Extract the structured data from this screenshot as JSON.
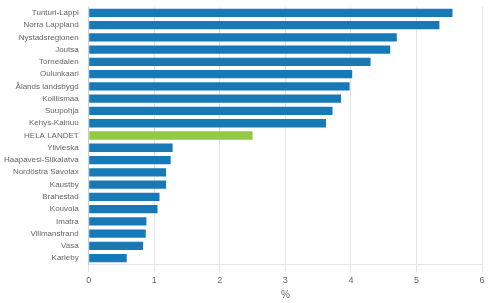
{
  "chart_data": {
    "type": "bar",
    "orientation": "horizontal",
    "categories": [
      "Tunturi-Lappi",
      "Norra Lappland",
      "Nystadsregionen",
      "Joutsa",
      "Tornedalen",
      "Oulunkaari",
      "Ålands landsbygd",
      "Koillismaa",
      "Suupohja",
      "Kehys-Kainuu",
      "HELA LANDET",
      "Ylivieska",
      "Haapavesi-Siikalatva",
      "Nordöstra Savolax",
      "Kaustby",
      "Brahestad",
      "Kouvola",
      "Imatra",
      "Villmanstrand",
      "Vasa",
      "Karleby"
    ],
    "values": [
      5.55,
      5.35,
      4.7,
      4.6,
      4.3,
      4.02,
      3.98,
      3.85,
      3.72,
      3.62,
      2.5,
      1.28,
      1.25,
      1.18,
      1.18,
      1.08,
      1.05,
      0.88,
      0.87,
      0.83,
      0.58
    ],
    "colors": [
      "#1779b5",
      "#1779b5",
      "#1779b5",
      "#1779b5",
      "#1779b5",
      "#1779b5",
      "#1779b5",
      "#1779b5",
      "#1779b5",
      "#1779b5",
      "#92c946",
      "#1779b5",
      "#1779b5",
      "#1779b5",
      "#1779b5",
      "#1779b5",
      "#1779b5",
      "#1779b5",
      "#1779b5",
      "#1779b5",
      "#1779b5"
    ],
    "xlabel": "%",
    "xlim": [
      0,
      6
    ],
    "xticks": [
      0,
      1,
      2,
      3,
      4,
      5,
      6
    ],
    "grid": true
  }
}
